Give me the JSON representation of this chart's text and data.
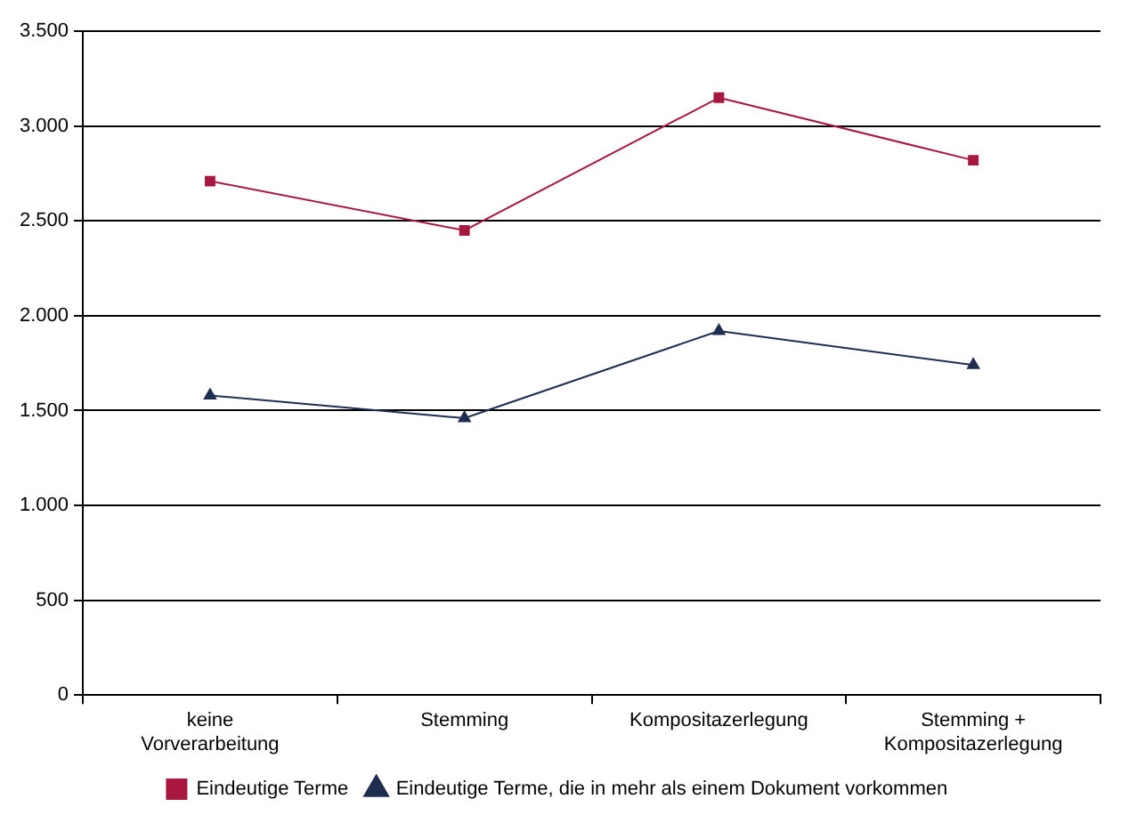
{
  "chart_data": {
    "type": "line",
    "categories": [
      "keine Vorverarbeitung",
      "Stemming",
      "Kompositazerlegung",
      "Stemming + Kompositazerlegung"
    ],
    "series": [
      {
        "name": "Eindeutige Terme",
        "color": "#a8173f",
        "values": [
          2710,
          2450,
          3150,
          2820
        ],
        "marker": "square"
      },
      {
        "name": "Eindeutige Terme, die in mehr als einem Dokument vorkommen",
        "color": "#1f2d50",
        "values": [
          1580,
          1460,
          1920,
          1740
        ],
        "marker": "triangle"
      }
    ],
    "ylim": [
      0,
      3500
    ],
    "yticks": [
      0,
      {
        "value": 500,
        "label": "500"
      },
      {
        "value": 1000,
        "label": "1.000"
      },
      {
        "value": 1500,
        "label": "1.500"
      },
      {
        "value": 2000,
        "label": "2.000"
      },
      {
        "value": 2500,
        "label": "2.500"
      },
      {
        "value": 3000,
        "label": "3.000"
      },
      {
        "value": 3500,
        "label": "3.500"
      }
    ],
    "grid": "y",
    "legend": "bottom",
    "line_style": "solid"
  }
}
